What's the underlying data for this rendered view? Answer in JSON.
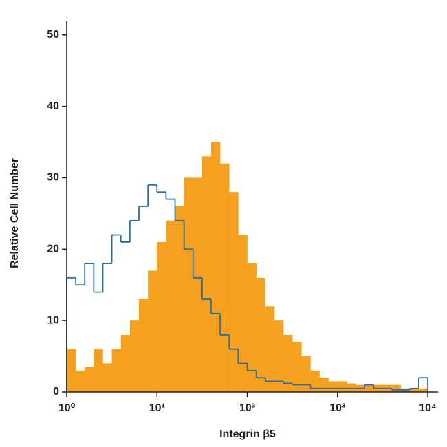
{
  "chart_data": {
    "type": "histogram",
    "xlabel": "Integrin β5",
    "ylabel": "Relative Cell Number",
    "xscale": "log",
    "xlim": [
      1,
      13000
    ],
    "ylim": [
      0,
      52
    ],
    "xticks": [
      {
        "value": 1,
        "label": "10⁰"
      },
      {
        "value": 10,
        "label": "10¹"
      },
      {
        "value": 100,
        "label": "10²"
      },
      {
        "value": 1000,
        "label": "10³"
      },
      {
        "value": 10000,
        "label": "10⁴"
      }
    ],
    "yticks": [
      0,
      10,
      20,
      30,
      40,
      50
    ],
    "bins": [
      1,
      1.259,
      1.585,
      1.995,
      2.512,
      3.162,
      3.981,
      5.012,
      6.31,
      7.943,
      10,
      12.59,
      15.85,
      19.95,
      25.12,
      31.62,
      39.81,
      50.12,
      63.1,
      79.43,
      100,
      125.9,
      158.5,
      199.5,
      251.2,
      316.2,
      398.1,
      501.2,
      631,
      794.3,
      1000,
      1259,
      1585,
      1995,
      2512,
      3162,
      3981,
      5012,
      6310,
      7943,
      10000
    ],
    "series": [
      {
        "color": "#f5a01f",
        "fill": true,
        "values": [
          6,
          3,
          3.5,
          6,
          4,
          6,
          8,
          10,
          13,
          17,
          21,
          24,
          26,
          30,
          30,
          33,
          35,
          32,
          28,
          22,
          18,
          16,
          12,
          10,
          8,
          7,
          5,
          3,
          2,
          1.5,
          1.5,
          1.2,
          1,
          1,
          1,
          1,
          1,
          0.5,
          0.5,
          0.5
        ]
      },
      {
        "color": "#2d6fa0",
        "fill": false,
        "values": [
          16,
          15,
          18,
          14,
          18,
          22,
          21,
          24,
          26,
          29,
          28,
          27,
          24,
          20,
          16,
          13,
          11,
          8,
          6,
          4,
          3,
          2,
          1.5,
          1.5,
          1.2,
          1,
          1,
          0.5,
          0.5,
          0.5,
          0.5,
          0.5,
          0.5,
          1,
          0.5,
          0.5,
          0.3,
          0.3,
          0.5,
          2
        ]
      }
    ]
  }
}
